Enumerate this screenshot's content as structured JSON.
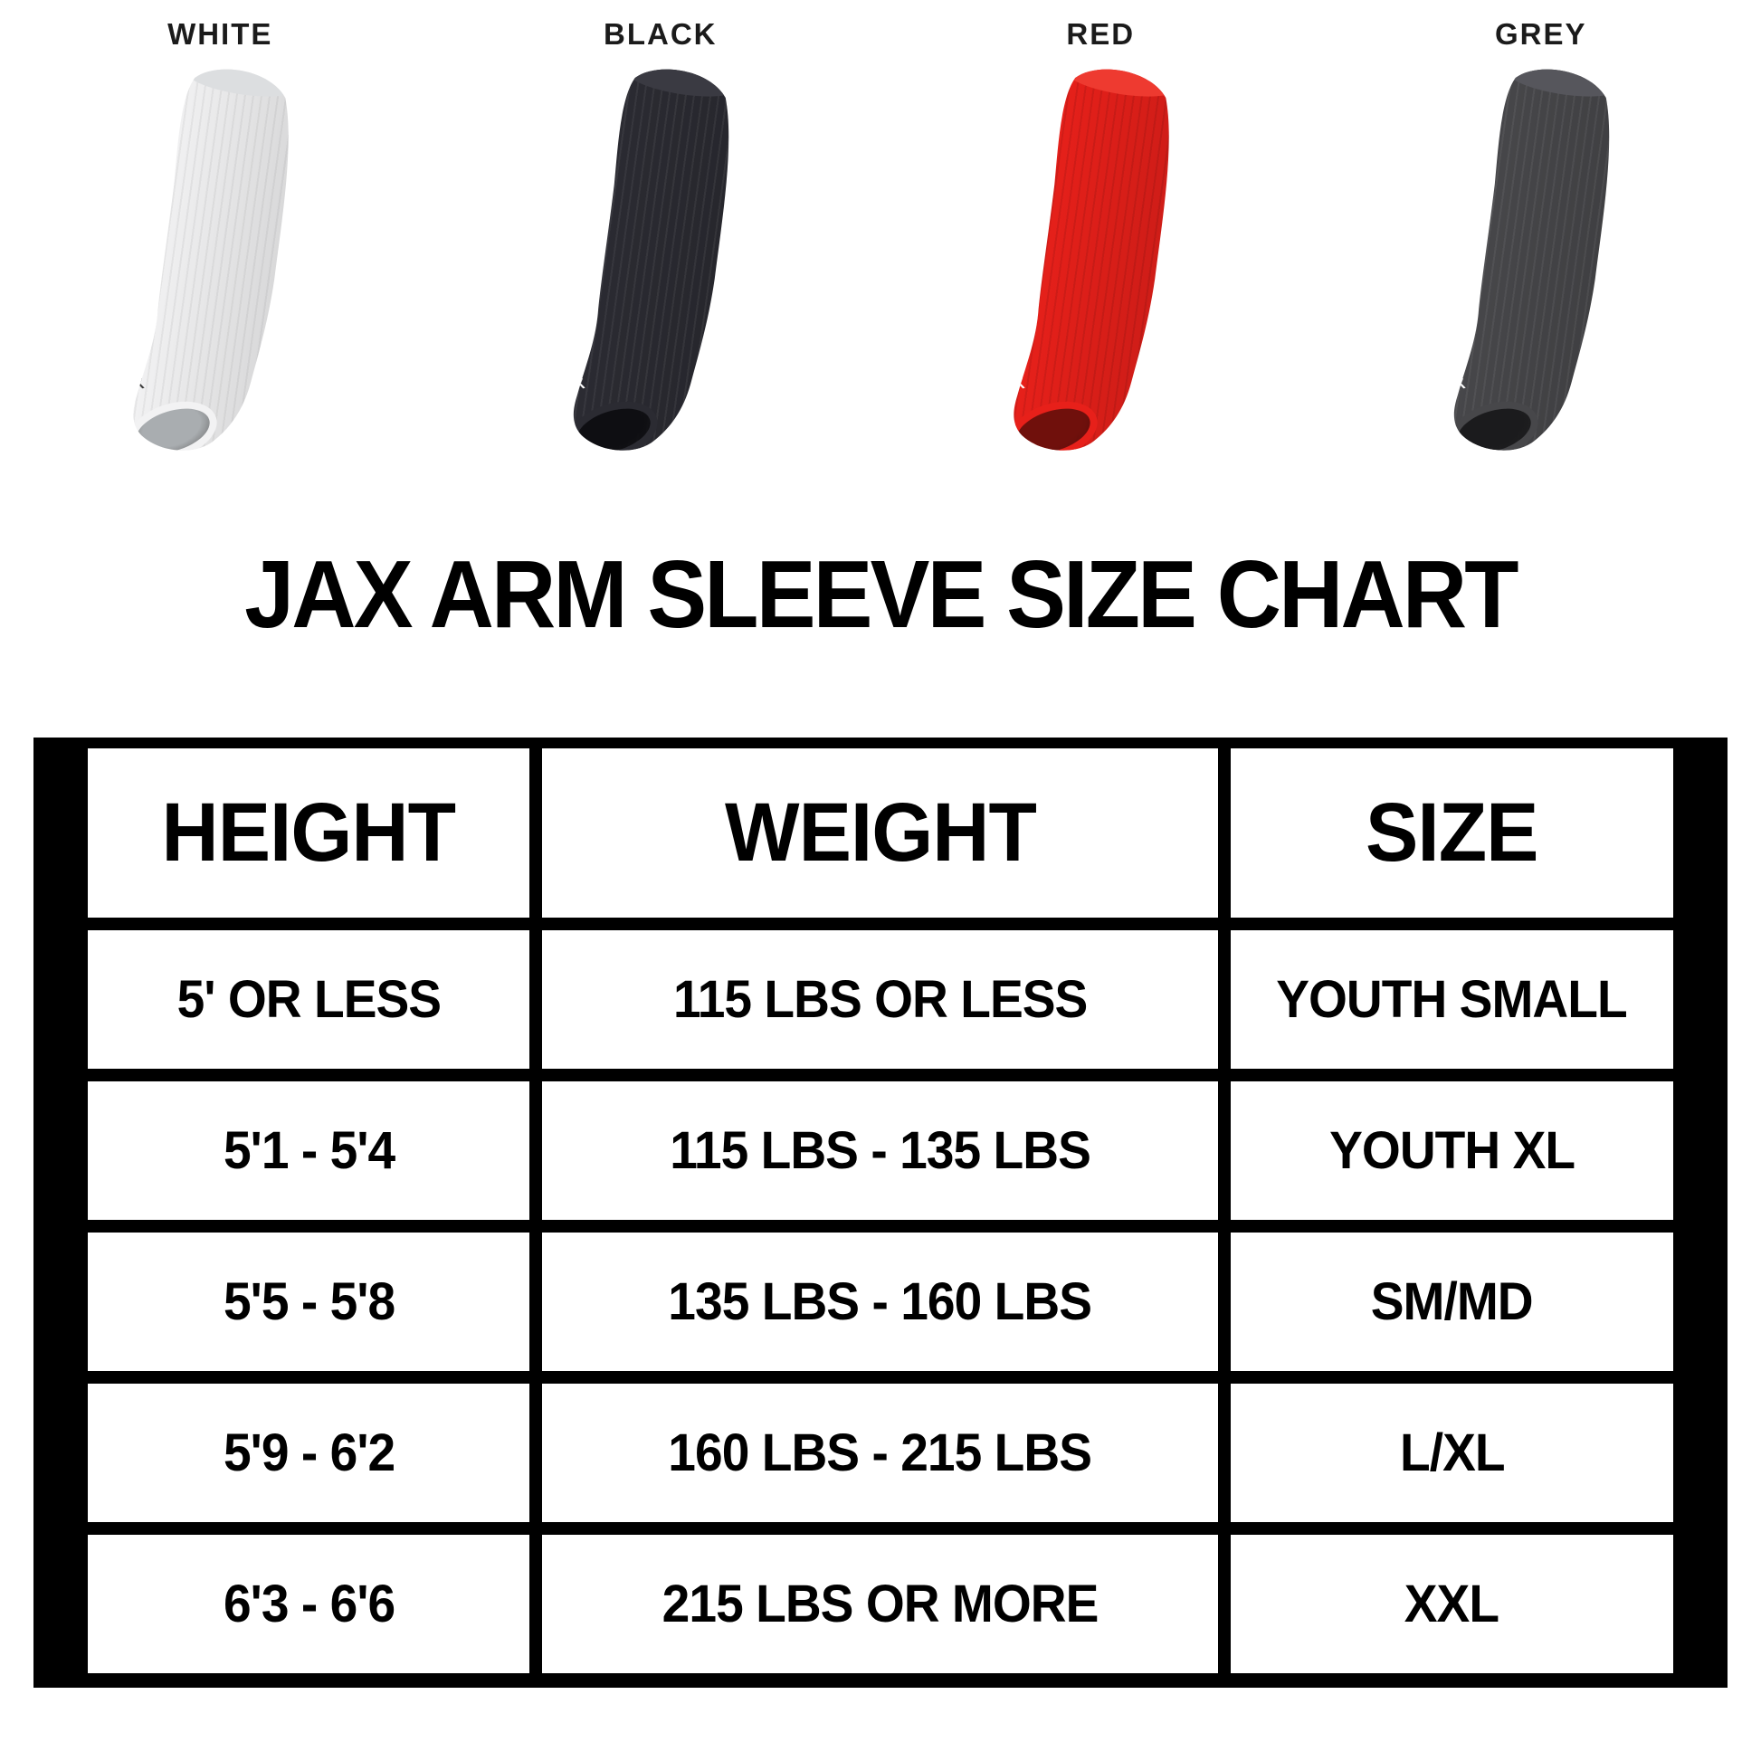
{
  "title": "JAX ARM SLEEVE SIZE CHART",
  "sleeves": [
    {
      "label": "WHITE",
      "logo_text": "AX",
      "color": "#f2f2f3",
      "band": "#dcdee0",
      "cuff": "#a9adb0",
      "logo": "#3a3a3a",
      "stripe": "rgba(0,0,0,0.05)"
    },
    {
      "label": "BLACK",
      "logo_text": "AX",
      "color": "#2b2b32",
      "band": "#3a3a42",
      "cuff": "#0e0e12",
      "logo": "#ffffff",
      "stripe": "rgba(255,255,255,0.06)"
    },
    {
      "label": "RED",
      "logo_text": "AX",
      "color": "#e7201a",
      "band": "#ee3a30",
      "cuff": "#70100c",
      "logo": "#ffffff",
      "stripe": "rgba(0,0,0,0.09)"
    },
    {
      "label": "GREY",
      "logo_text": "AX",
      "color": "#47474a",
      "band": "#56565c",
      "cuff": "#1b1b1d",
      "logo": "#ffffff",
      "stripe": "rgba(255,255,255,0.06)"
    }
  ],
  "table": {
    "headers": [
      "HEIGHT",
      "WEIGHT",
      "SIZE"
    ],
    "rows": [
      [
        "5' OR LESS",
        "115 LBS OR LESS",
        "YOUTH SMALL"
      ],
      [
        "5'1 - 5'4",
        "115 LBS - 135 LBS",
        "YOUTH XL"
      ],
      [
        "5'5 - 5'8",
        "135 LBS - 160 LBS",
        "SM/MD"
      ],
      [
        "5'9 - 6'2",
        "160 LBS - 215 LBS",
        "L/XL"
      ],
      [
        "6'3 - 6'6",
        "215 LBS OR MORE",
        "XXL"
      ]
    ]
  },
  "colors": {
    "page_background": "#ffffff",
    "table_frame": "#000000",
    "cell_background": "#ffffff",
    "text": "#000000"
  }
}
